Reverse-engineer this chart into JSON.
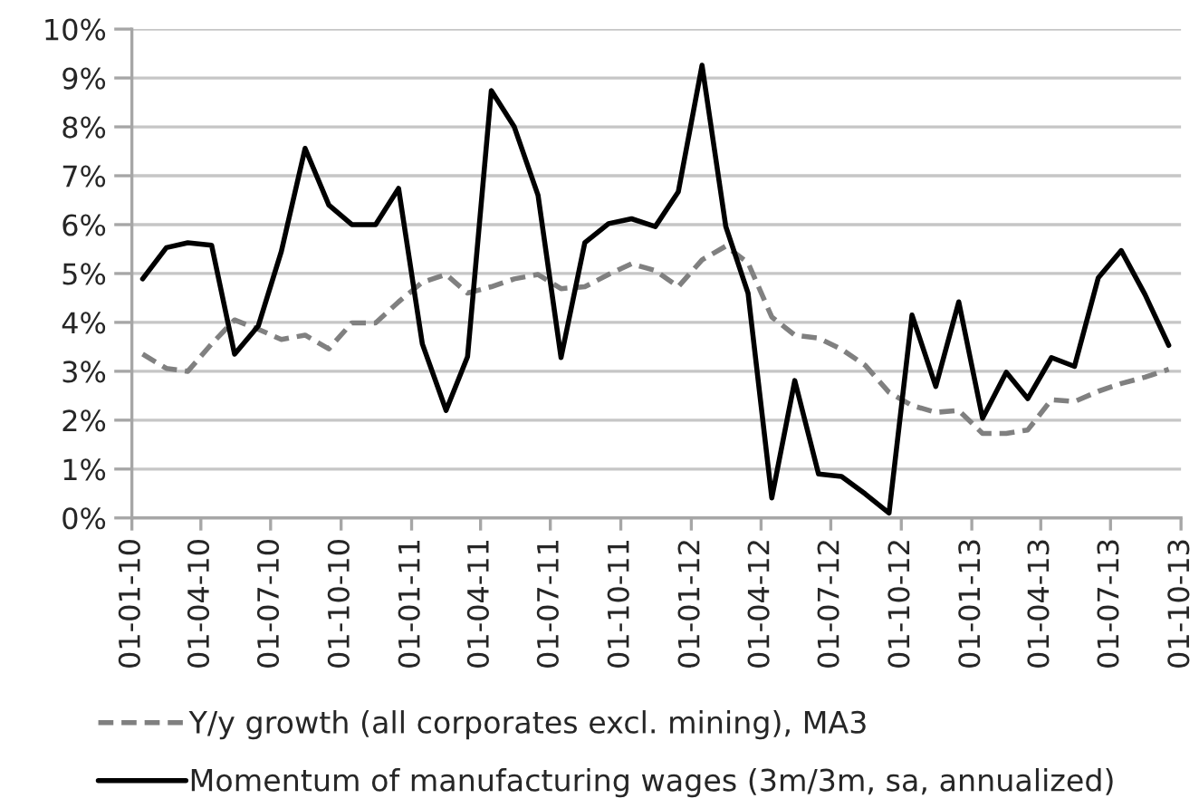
{
  "chart_data": {
    "type": "line",
    "x": [
      "2010-01-15",
      "2010-02-15",
      "2010-03-15",
      "2010-04-15",
      "2010-05-15",
      "2010-06-15",
      "2010-07-15",
      "2010-08-15",
      "2010-09-15",
      "2010-10-15",
      "2010-11-15",
      "2010-12-15",
      "2011-01-15",
      "2011-02-15",
      "2011-03-15",
      "2011-04-15",
      "2011-05-15",
      "2011-06-15",
      "2011-07-15",
      "2011-08-15",
      "2011-09-15",
      "2011-10-15",
      "2011-11-15",
      "2011-12-15",
      "2012-01-15",
      "2012-02-15",
      "2012-03-15",
      "2012-04-15",
      "2012-05-15",
      "2012-06-15",
      "2012-07-15",
      "2012-08-15",
      "2012-09-15",
      "2012-10-15",
      "2012-11-15",
      "2012-12-15",
      "2013-01-15",
      "2013-02-15",
      "2013-03-15",
      "2013-04-15",
      "2013-05-15",
      "2013-06-15",
      "2013-07-15",
      "2013-08-15",
      "2013-09-15"
    ],
    "series": [
      {
        "name": "Y/y growth (all corporates excl. mining), MA3",
        "color": "#808080",
        "line_style": "dashed",
        "values": [
          3.35,
          3.06,
          3.0,
          3.56,
          4.05,
          3.86,
          3.65,
          3.74,
          3.46,
          3.99,
          3.99,
          4.42,
          4.82,
          4.98,
          4.6,
          4.73,
          4.89,
          4.98,
          4.69,
          4.73,
          4.98,
          5.2,
          5.06,
          4.73,
          5.28,
          5.56,
          5.22,
          4.11,
          3.74,
          3.68,
          3.45,
          3.12,
          2.57,
          2.3,
          2.16,
          2.2,
          1.73,
          1.73,
          1.8,
          2.42,
          2.38,
          2.59,
          2.75,
          2.88,
          3.04
        ]
      },
      {
        "name": "Momentum of manufacturing wages (3m/3m, sa, annualized)",
        "color": "#000000",
        "line_style": "solid",
        "values": [
          4.89,
          5.53,
          5.63,
          5.58,
          3.35,
          3.93,
          5.45,
          7.56,
          6.4,
          6.0,
          6.0,
          6.74,
          3.56,
          2.2,
          3.3,
          8.74,
          8.0,
          6.6,
          3.28,
          5.63,
          6.02,
          6.12,
          5.96,
          6.67,
          9.26,
          5.96,
          4.6,
          0.41,
          2.81,
          0.9,
          0.85,
          0.49,
          0.1,
          4.15,
          2.69,
          4.42,
          2.04,
          2.98,
          2.44,
          3.28,
          3.1,
          4.91,
          5.47,
          4.57,
          3.53
        ]
      }
    ],
    "xlim": [
      "2010-01-01",
      "2013-10-01"
    ],
    "xticks": [
      {
        "value": "2010-01-01",
        "label": "01-01-10"
      },
      {
        "value": "2010-04-01",
        "label": "01-04-10"
      },
      {
        "value": "2010-07-01",
        "label": "01-07-10"
      },
      {
        "value": "2010-10-01",
        "label": "01-10-10"
      },
      {
        "value": "2011-01-01",
        "label": "01-01-11"
      },
      {
        "value": "2011-04-01",
        "label": "01-04-11"
      },
      {
        "value": "2011-07-01",
        "label": "01-07-11"
      },
      {
        "value": "2011-10-01",
        "label": "01-10-11"
      },
      {
        "value": "2012-01-01",
        "label": "01-01-12"
      },
      {
        "value": "2012-04-01",
        "label": "01-04-12"
      },
      {
        "value": "2012-07-01",
        "label": "01-07-12"
      },
      {
        "value": "2012-10-01",
        "label": "01-10-12"
      },
      {
        "value": "2013-01-01",
        "label": "01-01-13"
      },
      {
        "value": "2013-04-01",
        "label": "01-04-13"
      },
      {
        "value": "2013-07-01",
        "label": "01-07-13"
      },
      {
        "value": "2013-10-01",
        "label": "01-10-13"
      }
    ],
    "ylim": [
      0,
      10
    ],
    "yticks": [
      {
        "value": 0,
        "label": "0%"
      },
      {
        "value": 1,
        "label": "1%"
      },
      {
        "value": 2,
        "label": "2%"
      },
      {
        "value": 3,
        "label": "3%"
      },
      {
        "value": 4,
        "label": "4%"
      },
      {
        "value": 5,
        "label": "5%"
      },
      {
        "value": 6,
        "label": "6%"
      },
      {
        "value": 7,
        "label": "7%"
      },
      {
        "value": 8,
        "label": "8%"
      },
      {
        "value": 9,
        "label": "9%"
      },
      {
        "value": 10,
        "label": "10%"
      }
    ],
    "grid": "y",
    "legend": "bottom"
  }
}
